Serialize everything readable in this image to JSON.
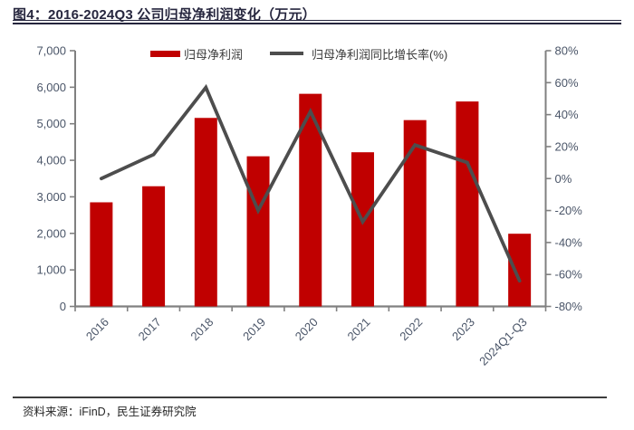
{
  "figure": {
    "title": "图4：2016-2024Q3 公司归母净利润变化（万元）",
    "source": "资料来源：iFinD，民生证券研究院"
  },
  "colors": {
    "bar": "#C00000",
    "line": "#4D4D4D",
    "axis": "#808080",
    "tick_label": "#4A5568",
    "title": "#26263E",
    "title_rule": "#26263E",
    "source_rule": "#3D3D3D"
  },
  "chart_data": {
    "type": "bar",
    "title": "2016-2024Q3 公司归母净利润变化（万元）",
    "categories": [
      "2016",
      "2017",
      "2018",
      "2019",
      "2020",
      "2021",
      "2022",
      "2023",
      "2024Q1-Q3"
    ],
    "series": [
      {
        "name": "归母净利润",
        "type": "bar",
        "axis": "left",
        "color": "#C00000",
        "values": [
          2850,
          3290,
          5160,
          4110,
          5820,
          4220,
          5100,
          5610,
          1990
        ]
      },
      {
        "name": "归母净利润同比增长率(%)",
        "type": "line",
        "axis": "right",
        "color": "#4D4D4D",
        "values": [
          0,
          15,
          57,
          -20,
          42,
          -27,
          21,
          10,
          -64
        ]
      }
    ],
    "left_axis": {
      "min": 0,
      "max": 7000,
      "step": 1000,
      "format": "thousands"
    },
    "right_axis": {
      "min": -80,
      "max": 80,
      "step": 20,
      "suffix": "%"
    },
    "legend_position": "top",
    "grid": false,
    "xlabel": "",
    "ylabel_left": "万元",
    "ylabel_right": "%"
  }
}
